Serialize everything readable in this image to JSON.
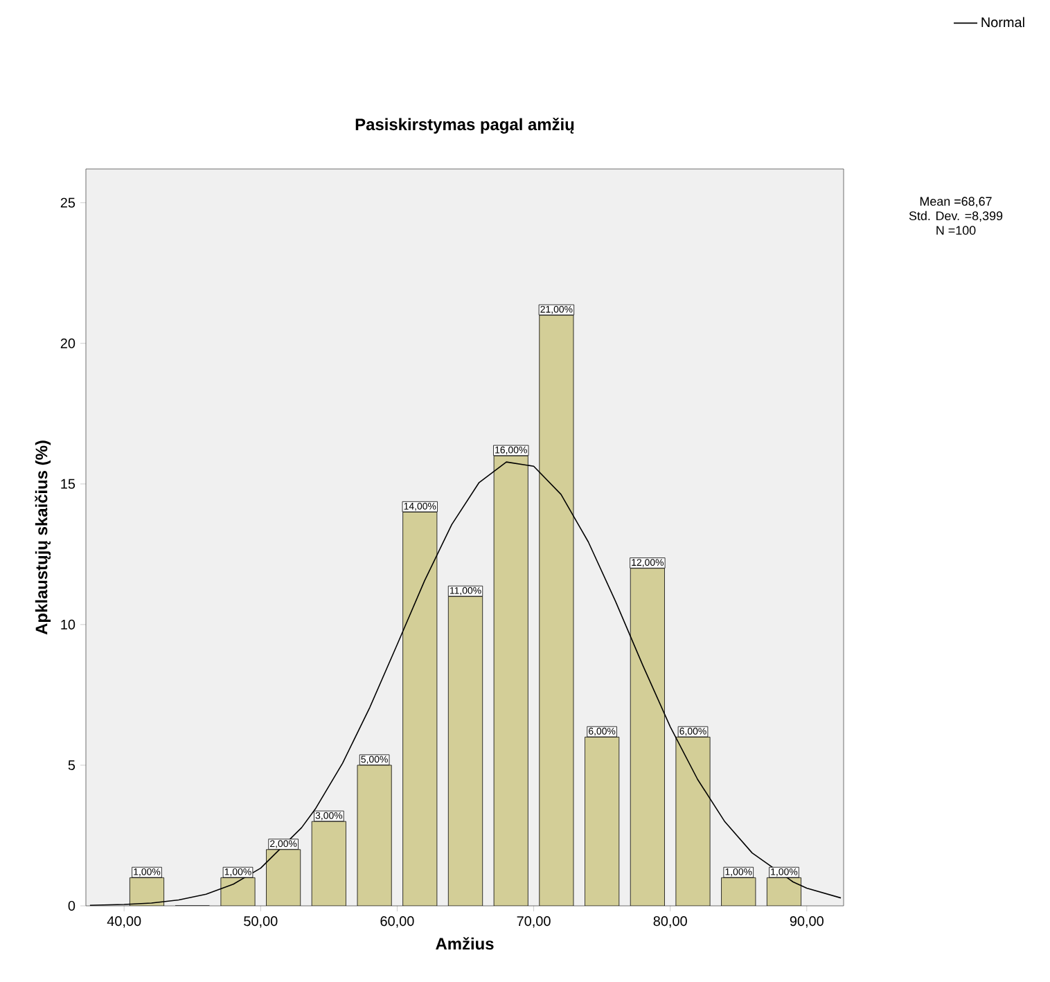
{
  "chart_data": {
    "type": "histogram",
    "title": "Pasiskirstymas pagal amžių",
    "xlabel": "Amžius",
    "ylabel": "Apklaustųjų skaičius (%)",
    "bins": [
      40,
      43.33,
      46.67,
      50,
      53.33,
      56.67,
      60,
      63.33,
      66.67,
      70,
      73.33,
      76.67,
      80,
      83.33,
      86.67,
      90
    ],
    "values": [
      1,
      0,
      1,
      2,
      3,
      5,
      14,
      11,
      16,
      21,
      6,
      12,
      6,
      1,
      1
    ],
    "value_labels": [
      "1,00%",
      null,
      "1,00%",
      "2,00%",
      "3,00%",
      "5,00%",
      "14,00%",
      "11,00%",
      "16,00%",
      "21,00%",
      "6,00%",
      "12,00%",
      "6,00%",
      "1,00%",
      "1,00%"
    ],
    "color": "#d3ce97",
    "series": [
      {
        "type": "line",
        "name": "Normal",
        "color": "#000000",
        "x": [
          37.5,
          40,
          42,
          44,
          46,
          48,
          50,
          53,
          54,
          56,
          58,
          60,
          62,
          64,
          66,
          68,
          70,
          72,
          74,
          76,
          78,
          80,
          82,
          84,
          86,
          89,
          90,
          92.5
        ],
        "values": [
          0.02,
          0.05,
          0.1,
          0.21,
          0.41,
          0.77,
          1.34,
          2.78,
          3.44,
          5.07,
          7.06,
          9.29,
          11.55,
          13.56,
          15.05,
          15.78,
          15.63,
          14.63,
          12.94,
          10.82,
          8.54,
          6.37,
          4.5,
          2.99,
          1.88,
          0.85,
          0.63,
          0.28
        ]
      }
    ],
    "xlim": [
      37.2,
      92.7
    ],
    "ylim": [
      0,
      26.2
    ],
    "xticks": [
      {
        "value": 40,
        "label": "40,00"
      },
      {
        "value": 50,
        "label": "50,00"
      },
      {
        "value": 60,
        "label": "60,00"
      },
      {
        "value": 70,
        "label": "70,00"
      },
      {
        "value": 80,
        "label": "80,00"
      },
      {
        "value": 90,
        "label": "90,00"
      }
    ],
    "yticks": [
      0,
      5,
      10,
      15,
      20,
      25
    ],
    "legend": "top right",
    "annotations": [
      "Mean =68,67",
      "Std. Dev. =8,399",
      "N =100"
    ]
  }
}
